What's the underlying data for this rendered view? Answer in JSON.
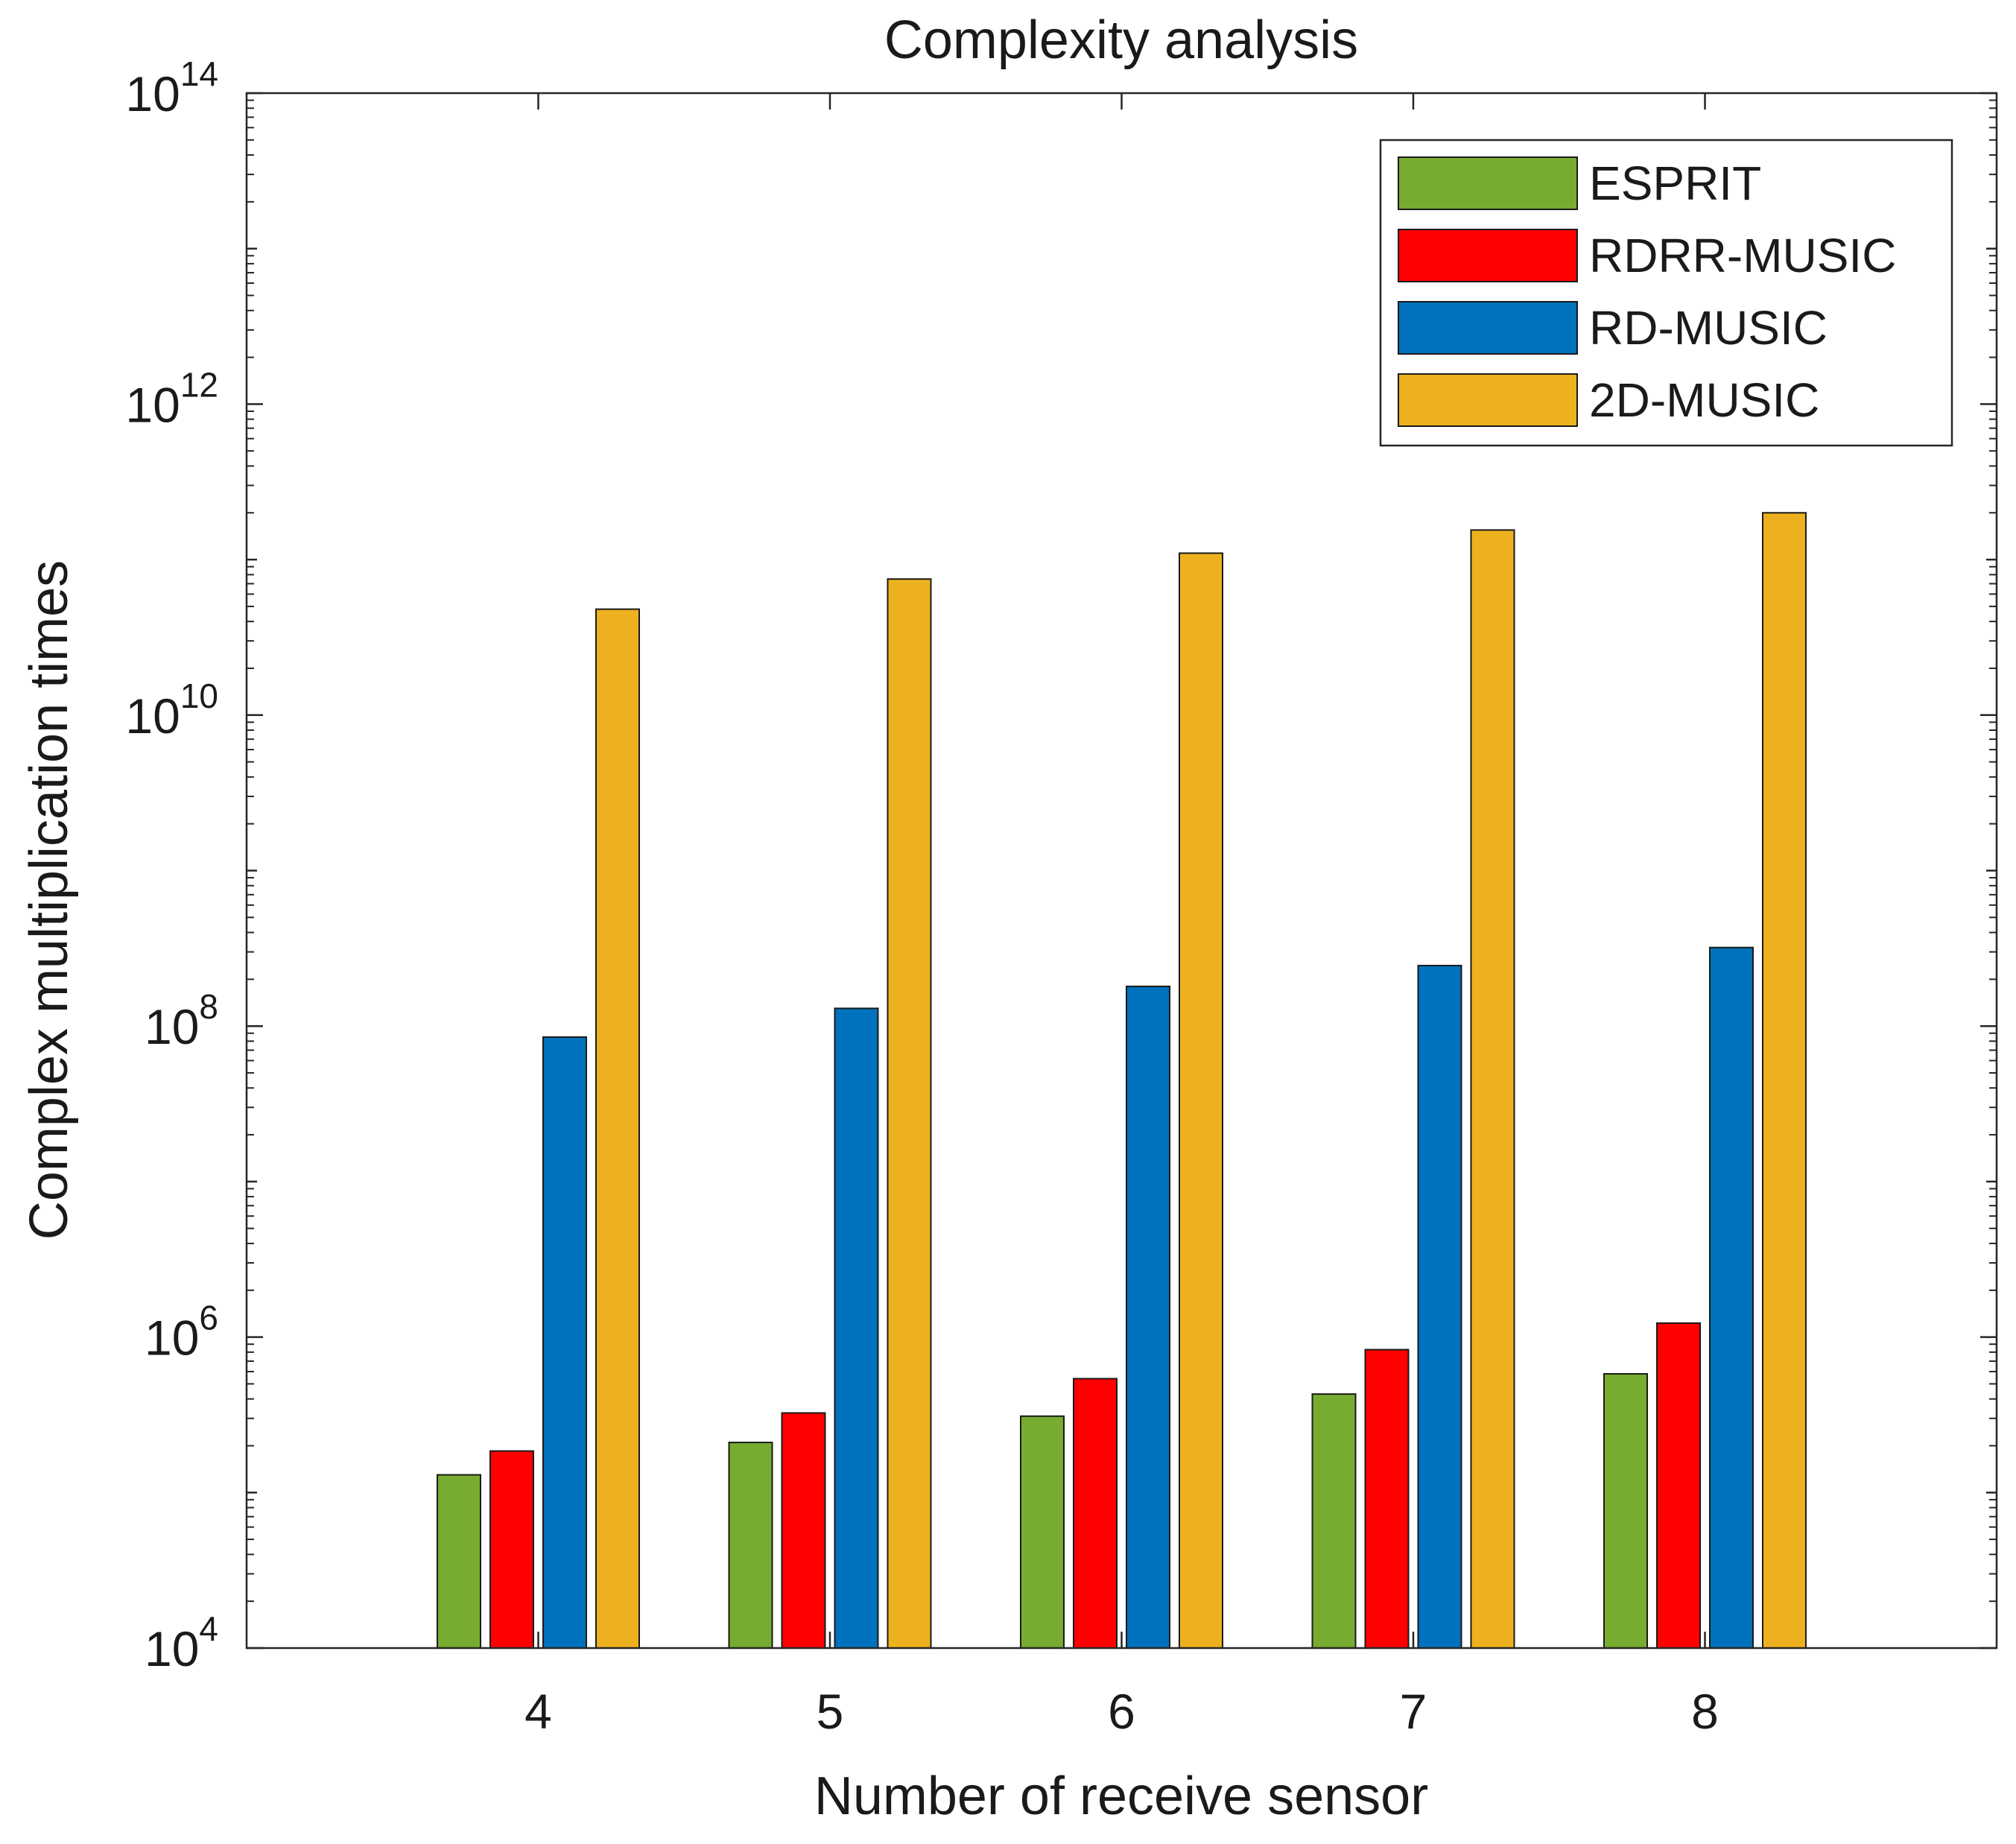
{
  "chart_data": {
    "type": "bar",
    "title": "Complexity analysis",
    "xlabel": "Number of receive sensor",
    "ylabel": "Complex multiplication times",
    "yscale": "log",
    "ylim": [
      10000,
      100000000000000
    ],
    "yticks": [
      {
        "base": "10",
        "exp": "4"
      },
      {
        "base": "10",
        "exp": "6"
      },
      {
        "base": "10",
        "exp": "8"
      },
      {
        "base": "10",
        "exp": "10"
      },
      {
        "base": "10",
        "exp": "12"
      },
      {
        "base": "10",
        "exp": "14"
      }
    ],
    "categories": [
      "4",
      "5",
      "6",
      "7",
      "8"
    ],
    "legend_position": "top-right",
    "grid": false,
    "series": [
      {
        "name": "ESPRIT",
        "color": "#77AC30",
        "values": [
          130000,
          210000,
          310000,
          430000,
          580000
        ]
      },
      {
        "name": "RDRR-MUSIC",
        "color": "#FF0000",
        "values": [
          185000,
          325000,
          540000,
          830000,
          1230000
        ]
      },
      {
        "name": "RD-MUSIC",
        "color": "#0072BD",
        "values": [
          85000000,
          130000000,
          180000000,
          245000000,
          320000000
        ]
      },
      {
        "name": "2D-MUSIC",
        "color": "#EDB120",
        "values": [
          48000000000,
          75000000000,
          110000000000,
          155000000000,
          200000000000
        ]
      }
    ]
  }
}
